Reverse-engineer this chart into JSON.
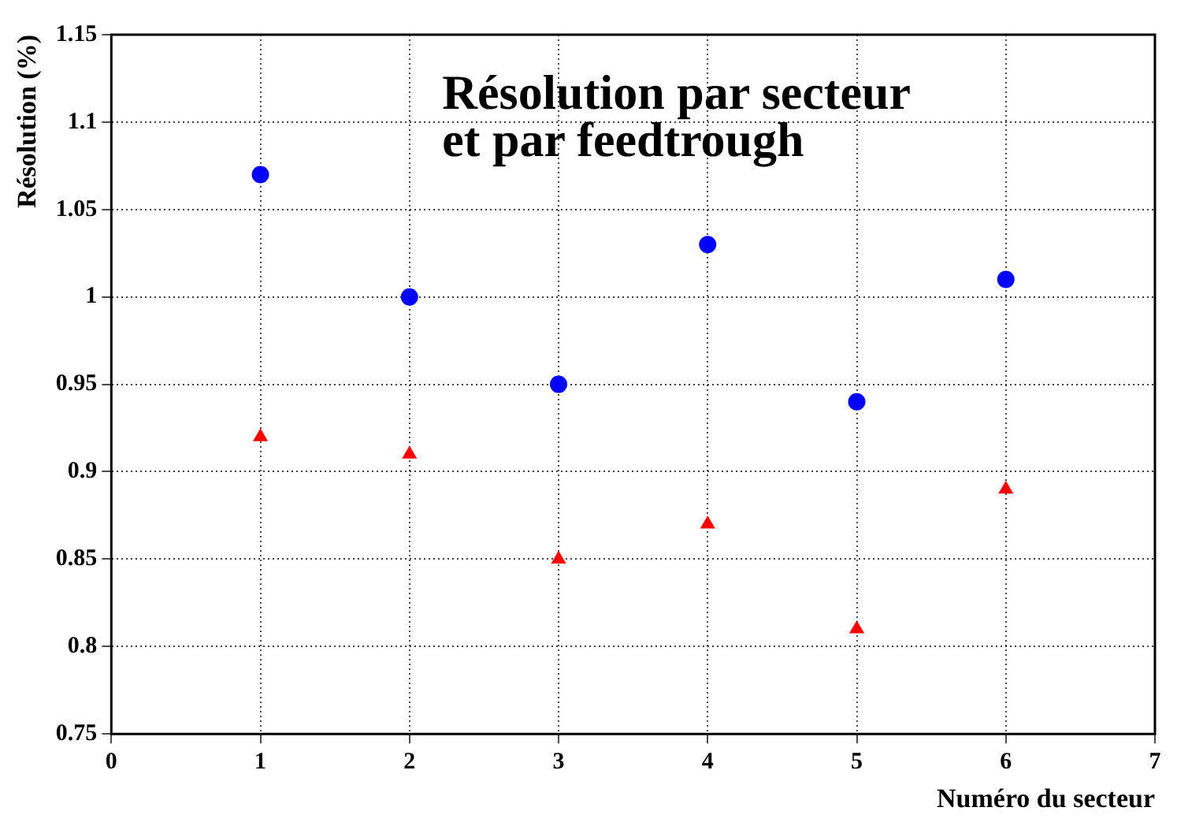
{
  "chart_data": {
    "type": "scatter",
    "title": "Résolution par secteur\net par feedtrough",
    "xlabel": "Numéro du secteur",
    "ylabel": "Résolution (%)",
    "x": [
      1,
      2,
      3,
      4,
      5,
      6
    ],
    "series": [
      {
        "color": "#0000ff",
        "marker": "circle",
        "values": [
          1.07,
          1.0,
          0.95,
          1.03,
          0.94,
          1.01
        ]
      },
      {
        "color": "#ff0000",
        "marker": "triangle",
        "values": [
          0.92,
          0.91,
          0.85,
          0.87,
          0.81,
          0.89
        ]
      }
    ],
    "xlim": [
      0,
      7
    ],
    "xticks": [
      0,
      1,
      2,
      3,
      4,
      5,
      6,
      7
    ],
    "ylim": [
      0.75,
      1.15
    ],
    "yticks": [
      0.75,
      0.8,
      0.85,
      0.9,
      0.95,
      1,
      1.05,
      1.1,
      1.15
    ],
    "grid": true,
    "legend": false
  }
}
